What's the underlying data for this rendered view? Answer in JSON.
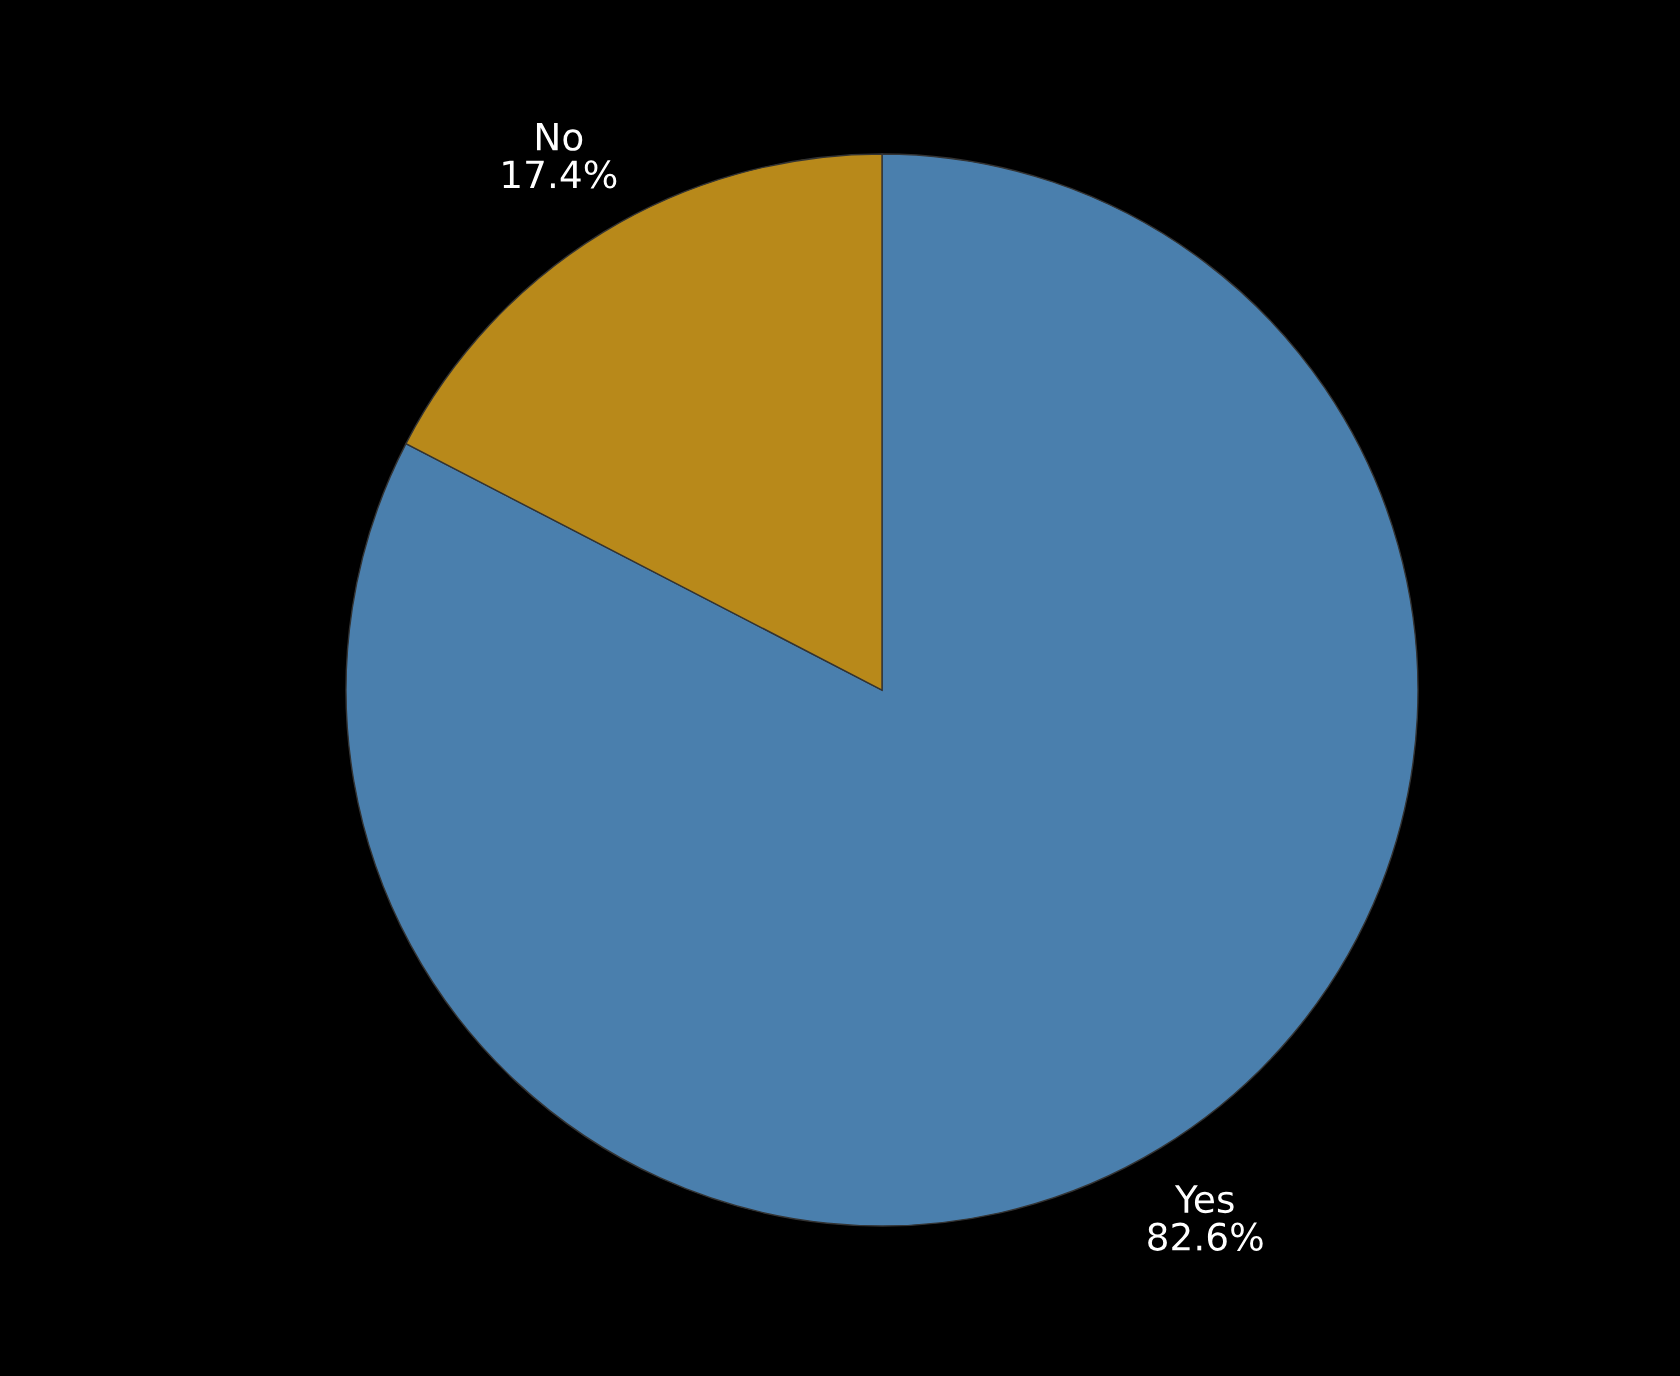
{
  "chart_data": {
    "type": "pie",
    "categories": [
      "Yes",
      "No"
    ],
    "values": [
      82.6,
      17.4
    ],
    "value_labels": [
      "82.6%",
      "17.4%"
    ],
    "colors": [
      "#4a7fad",
      "#b8891a"
    ]
  }
}
